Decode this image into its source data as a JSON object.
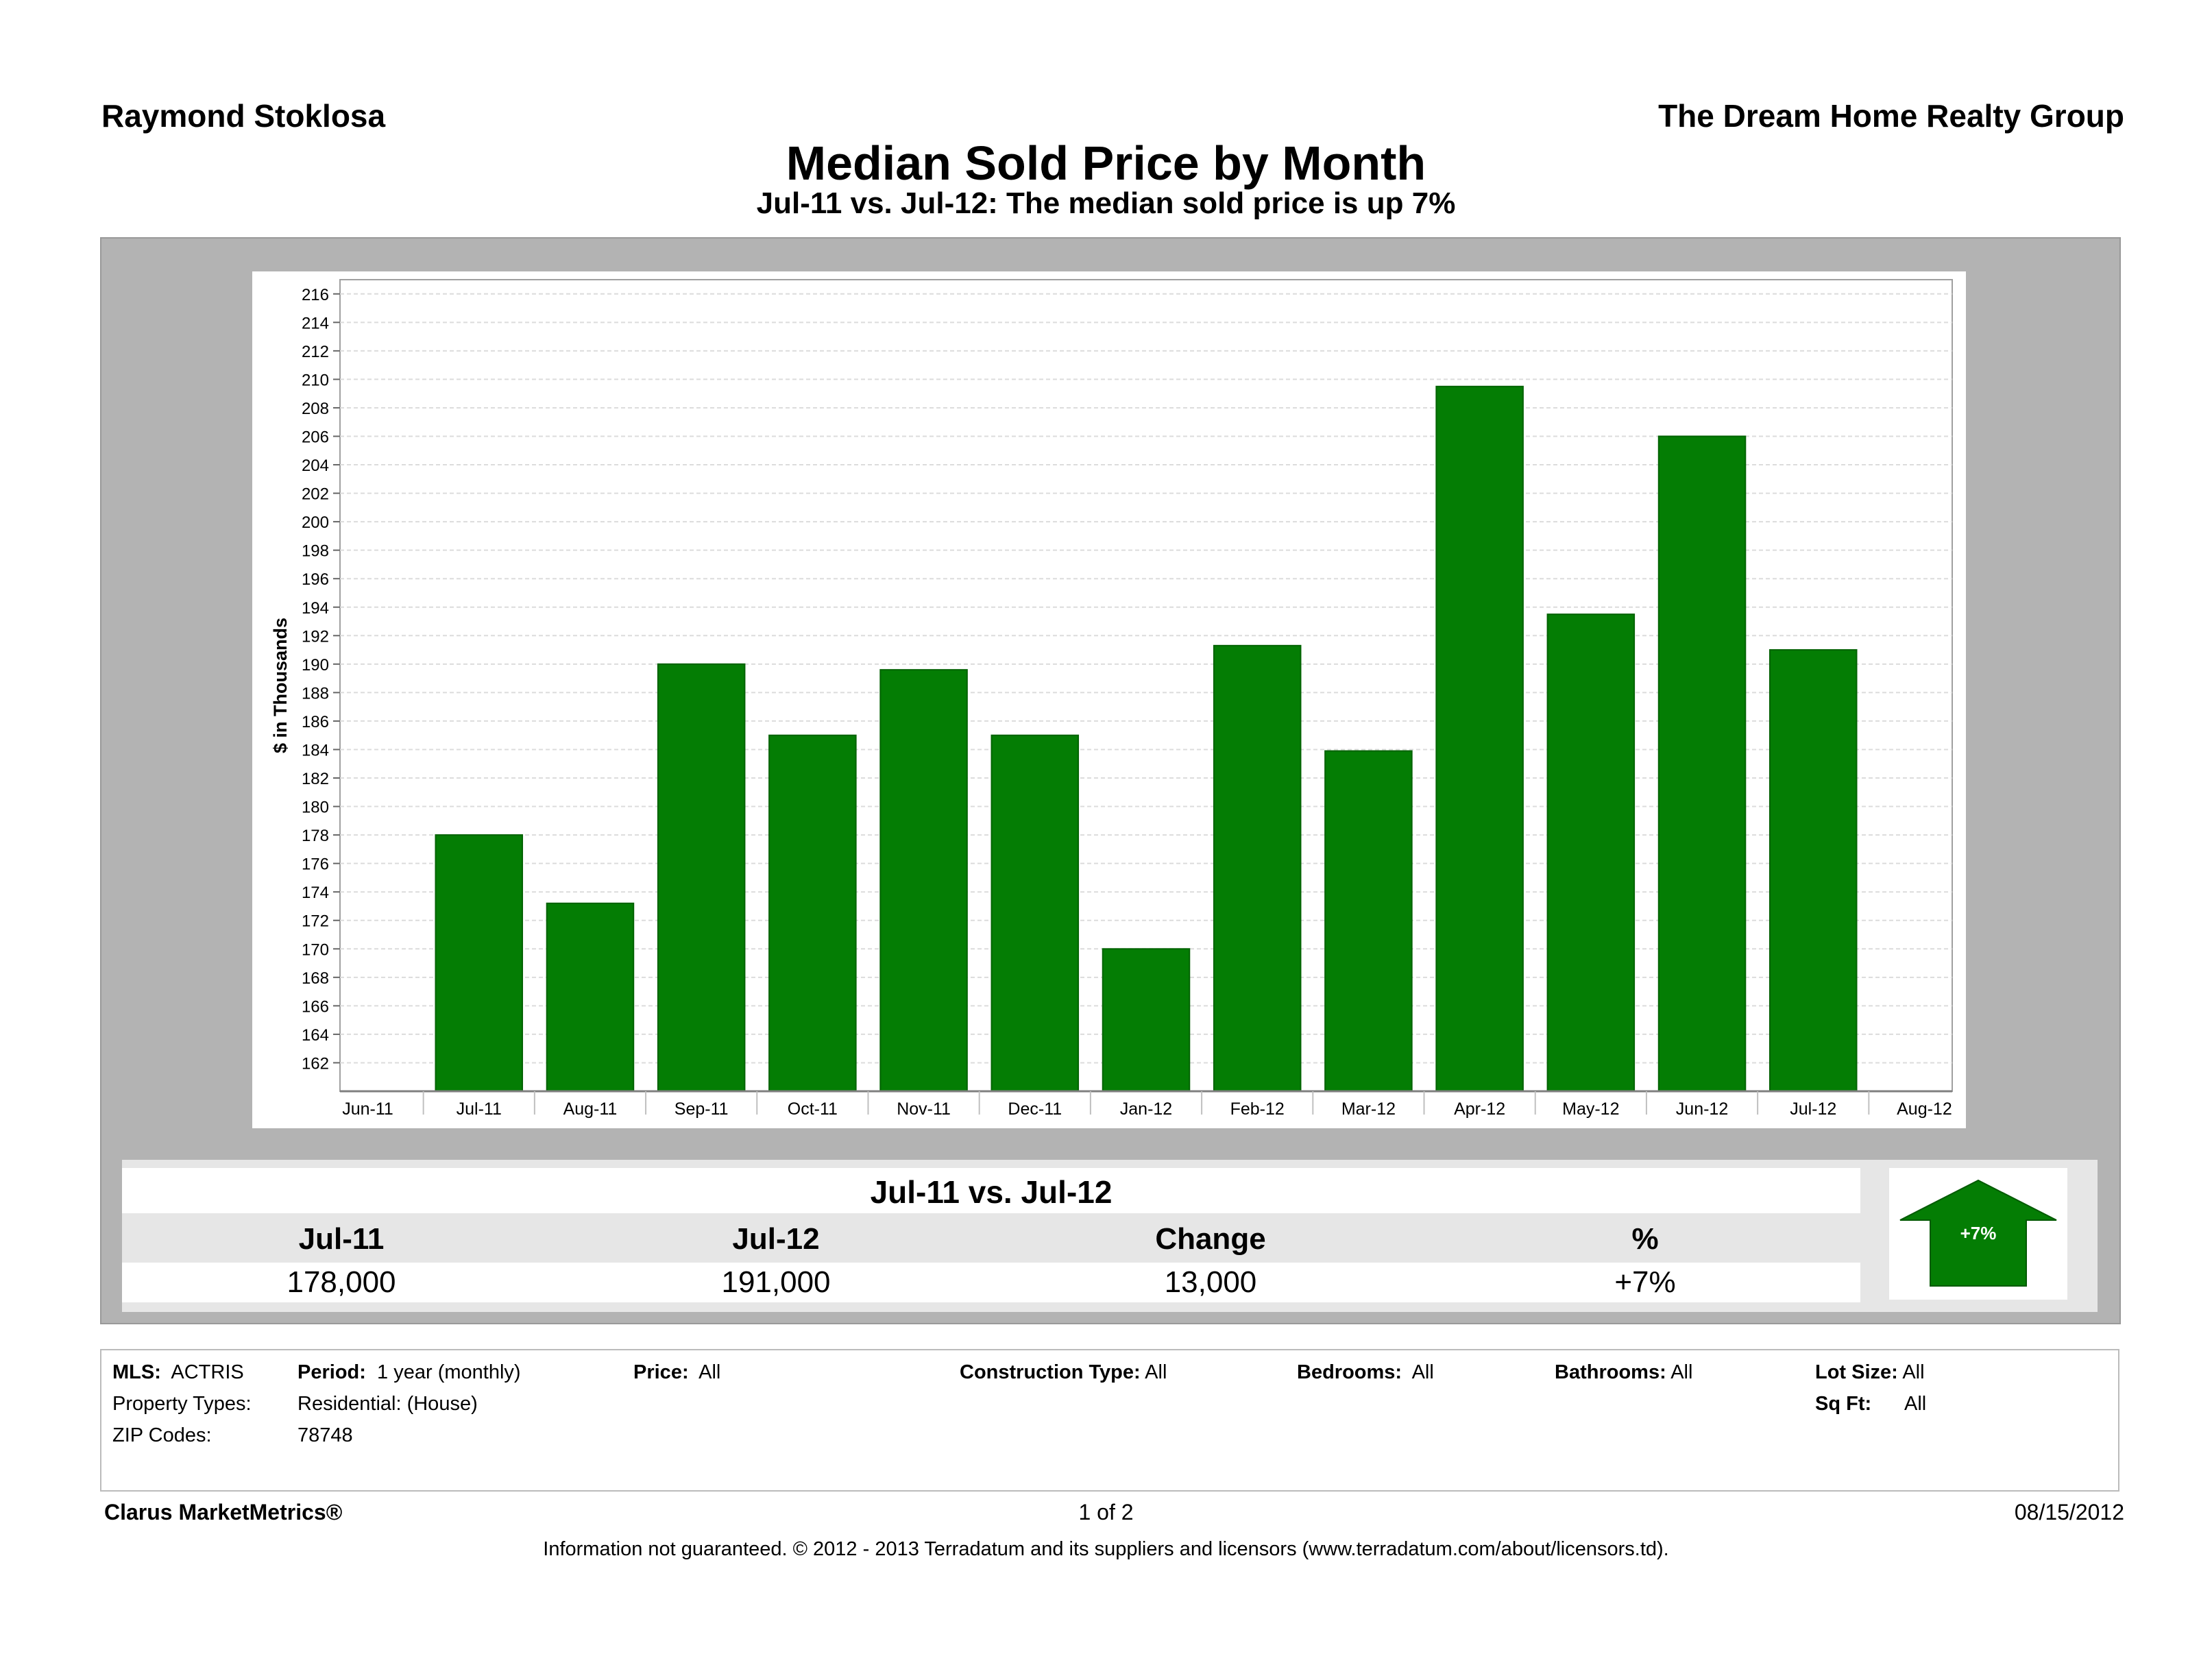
{
  "header": {
    "agent": "Raymond Stoklosa",
    "company": "The Dream Home Realty Group",
    "title": "Median Sold Price by Month",
    "subtitle": "Jul-11 vs. Jul-12:  The median sold price is up 7%"
  },
  "chart_data": {
    "type": "bar",
    "ylabel": "$ in Thousands",
    "ylim": [
      160,
      217
    ],
    "yticks": [
      162,
      164,
      166,
      168,
      170,
      172,
      174,
      176,
      178,
      180,
      182,
      184,
      186,
      188,
      190,
      192,
      194,
      196,
      198,
      200,
      202,
      204,
      206,
      208,
      210,
      212,
      214,
      216
    ],
    "x_tick_labels": [
      "Jun-11",
      "Jul-11",
      "Aug-11",
      "Sep-11",
      "Oct-11",
      "Nov-11",
      "Dec-11",
      "Jan-12",
      "Feb-12",
      "Mar-12",
      "Apr-12",
      "May-12",
      "Jun-12",
      "Jul-12",
      "Aug-12"
    ],
    "categories": [
      "Jul-11",
      "Aug-11",
      "Sep-11",
      "Oct-11",
      "Nov-11",
      "Dec-11",
      "Jan-12",
      "Feb-12",
      "Mar-12",
      "Apr-12",
      "May-12",
      "Jun-12",
      "Jul-12"
    ],
    "values": [
      178,
      173.2,
      190,
      185,
      189.6,
      185,
      170,
      191.3,
      183.9,
      209.5,
      193.5,
      206,
      191
    ],
    "bar_color": "#047d04",
    "grid": true,
    "legend": "none"
  },
  "summary": {
    "title": "Jul-11 vs. Jul-12",
    "headers": [
      "Jul-11",
      "Jul-12",
      "Change",
      "%"
    ],
    "values": [
      "178,000",
      "191,000",
      "13,000",
      "+7%"
    ],
    "arrow_label": "+7%",
    "arrow_direction": "up",
    "arrow_color": "#047d04"
  },
  "criteria": {
    "mls_label": "MLS:",
    "mls_value": "ACTRIS",
    "period_label": "Period:",
    "period_value": "1 year (monthly)",
    "price_label": "Price:",
    "price_value": "All",
    "construction_label": "Construction Type:",
    "construction_value": "All",
    "bedrooms_label": "Bedrooms:",
    "bedrooms_value": "All",
    "bathrooms_label": "Bathrooms:",
    "bathrooms_value": "All",
    "lotsize_label": "Lot Size:",
    "lotsize_value": "All",
    "proptypes_label": "Property Types:",
    "proptypes_value": "Residential: (House)",
    "sqft_label": "Sq Ft:",
    "sqft_value": "All",
    "zip_label": "ZIP Codes:",
    "zip_value": "78748"
  },
  "footer": {
    "brand": "Clarus MarketMetrics®",
    "page": "1 of 2",
    "date": "08/15/2012",
    "disclaimer": "Information not guaranteed.  © 2012 - 2013 Terradatum and its suppliers and licensors (www.terradatum.com/about/licensors.td)."
  }
}
